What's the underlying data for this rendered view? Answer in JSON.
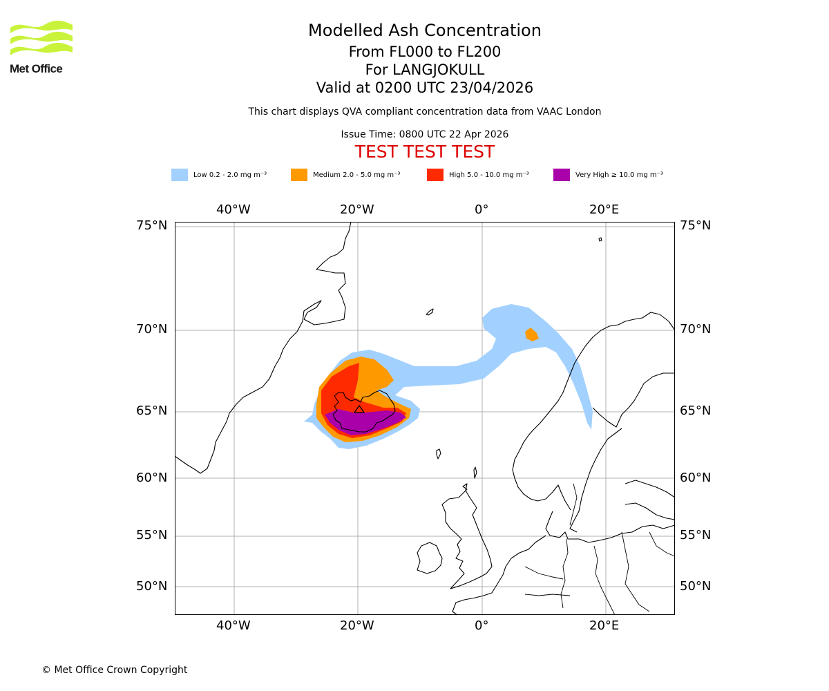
{
  "logo": {
    "text": "Met Office"
  },
  "title": {
    "main": "Modelled Ash Concentration",
    "levels": "From FL000 to FL200",
    "volcano": "For LANGJOKULL",
    "valid": "Valid at 0200 UTC 23/04/2026"
  },
  "description": "This chart displays QVA compliant concentration data from VAAC London",
  "issue_time": "Issue Time: 0800 UTC 22 Apr 2026",
  "test_banner": "TEST TEST TEST",
  "legend": [
    {
      "label": "Low 0.2 - 2.0 mg m⁻³",
      "color": "#a3d1ff"
    },
    {
      "label": "Medium 2.0 - 5.0 mg m⁻³",
      "color": "#ff9900"
    },
    {
      "label": "High 5.0 - 10.0 mg m⁻³",
      "color": "#ff2a00"
    },
    {
      "label": "Very High ≥ 10.0 mg m⁻³",
      "color": "#aa00aa"
    }
  ],
  "map": {
    "lon_labels": [
      "40°W",
      "20°W",
      "0°",
      "20°E"
    ],
    "lat_labels": [
      "75°N",
      "70°N",
      "65°N",
      "60°N",
      "55°N",
      "50°N"
    ]
  },
  "copyright": "© Met Office Crown Copyright"
}
